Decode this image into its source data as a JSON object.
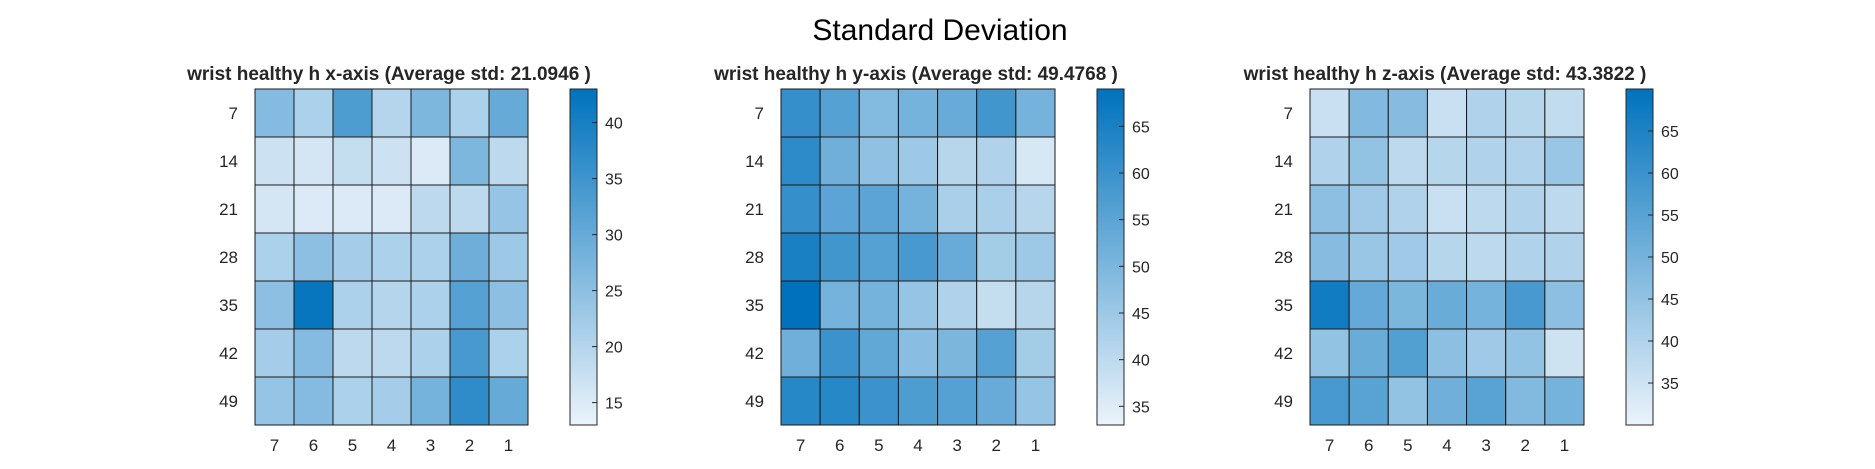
{
  "title": "Standard Deviation",
  "chart_data": [
    {
      "type": "heatmap",
      "title": "wrist healthy h x-axis (Average std: 21.0946 )",
      "x_categories": [
        "7",
        "6",
        "5",
        "4",
        "3",
        "2",
        "1"
      ],
      "y_categories": [
        "7",
        "14",
        "21",
        "28",
        "35",
        "42",
        "49"
      ],
      "values": [
        [
          26,
          21,
          33,
          20,
          27,
          21,
          30
        ],
        [
          17,
          16,
          18,
          17,
          15,
          27,
          19
        ],
        [
          16,
          15,
          15,
          15,
          19,
          19,
          24
        ],
        [
          21,
          25,
          22,
          21,
          21,
          29,
          23
        ],
        [
          25,
          42,
          21,
          20,
          21,
          32,
          25
        ],
        [
          22,
          26,
          19,
          19,
          21,
          34,
          21
        ],
        [
          24,
          26,
          21,
          22,
          28,
          37,
          30
        ]
      ],
      "colorbar": {
        "min": 13,
        "max": 43,
        "ticks": [
          15,
          20,
          25,
          30,
          35,
          40
        ]
      },
      "colormap": [
        "#ebf3fa",
        "#0072bd"
      ]
    },
    {
      "type": "heatmap",
      "title": "wrist healthy h y-axis (Average std: 49.4768 )",
      "x_categories": [
        "7",
        "6",
        "5",
        "4",
        "3",
        "2",
        "1"
      ],
      "y_categories": [
        "7",
        "14",
        "21",
        "28",
        "35",
        "42",
        "49"
      ],
      "values": [
        [
          61,
          56,
          49,
          51,
          53,
          59,
          51
        ],
        [
          62,
          52,
          47,
          45,
          41,
          42,
          36
        ],
        [
          61,
          55,
          55,
          51,
          43,
          43,
          41
        ],
        [
          65,
          59,
          56,
          58,
          53,
          44,
          45
        ],
        [
          69,
          51,
          51,
          46,
          42,
          39,
          41
        ],
        [
          52,
          60,
          54,
          48,
          50,
          56,
          44
        ],
        [
          63,
          63,
          60,
          57,
          56,
          53,
          46
        ]
      ],
      "colorbar": {
        "min": 33,
        "max": 69,
        "ticks": [
          35,
          40,
          45,
          50,
          55,
          60,
          65
        ]
      },
      "colormap": [
        "#ebf3fa",
        "#0072bd"
      ]
    },
    {
      "type": "heatmap",
      "title": "wrist healthy h z-axis (Average std: 43.3822 )",
      "x_categories": [
        "7",
        "6",
        "5",
        "4",
        "3",
        "2",
        "1"
      ],
      "y_categories": [
        "7",
        "14",
        "21",
        "28",
        "35",
        "42",
        "49"
      ],
      "values": [
        [
          36,
          48,
          47,
          36,
          40,
          39,
          37
        ],
        [
          40,
          45,
          38,
          39,
          40,
          40,
          44
        ],
        [
          46,
          43,
          40,
          36,
          38,
          40,
          38
        ],
        [
          47,
          44,
          43,
          39,
          38,
          40,
          40
        ],
        [
          67,
          53,
          49,
          52,
          50,
          58,
          46
        ],
        [
          45,
          52,
          56,
          46,
          43,
          45,
          35
        ],
        [
          58,
          55,
          45,
          51,
          55,
          48,
          50
        ]
      ],
      "colorbar": {
        "min": 30,
        "max": 70,
        "ticks": [
          35,
          40,
          45,
          50,
          55,
          60,
          65
        ]
      },
      "colormap": [
        "#ebf3fa",
        "#0072bd"
      ]
    }
  ]
}
